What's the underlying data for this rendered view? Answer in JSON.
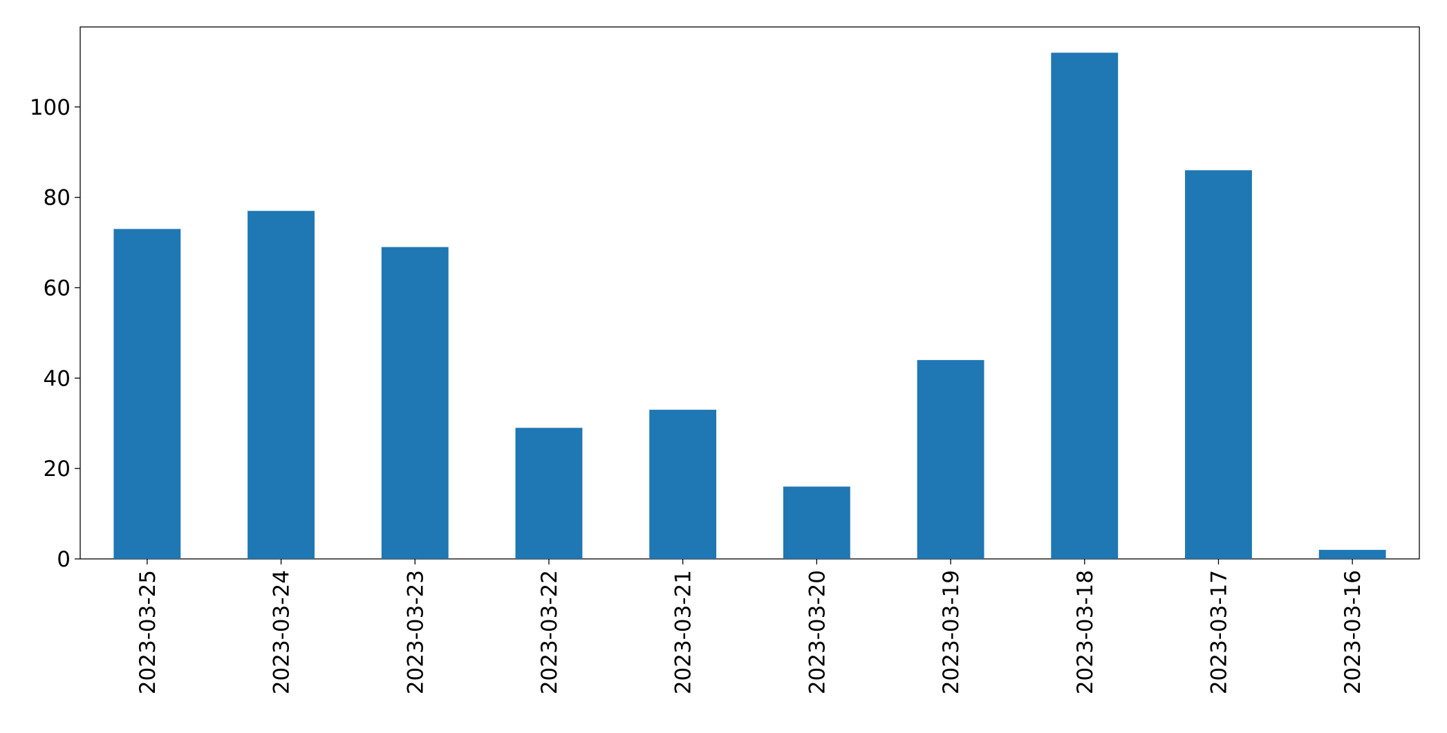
{
  "chart_data": {
    "type": "bar",
    "categories": [
      "2023-03-25",
      "2023-03-24",
      "2023-03-23",
      "2023-03-22",
      "2023-03-21",
      "2023-03-20",
      "2023-03-19",
      "2023-03-18",
      "2023-03-17",
      "2023-03-16"
    ],
    "values": [
      73,
      77,
      69,
      29,
      33,
      16,
      44,
      112,
      86,
      2
    ],
    "color": "#1f77b4",
    "ylim": [
      0,
      117.7
    ],
    "yticks": [
      0,
      20,
      40,
      60,
      80,
      100
    ],
    "grid": false
  }
}
